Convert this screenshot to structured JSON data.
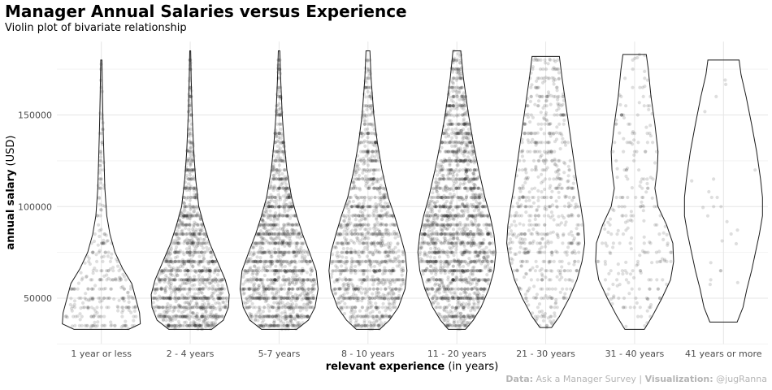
{
  "chart_data": {
    "type": "violin",
    "title": "Manager Annual Salaries versus Experience",
    "subtitle": "Violin plot of bivariate relationship",
    "xlabel_bold": "relevant experience",
    "xlabel_rest": " (in years)",
    "ylabel_bold": "annual salary",
    "ylabel_rest": " (USD)",
    "ylim": [
      25000,
      190000
    ],
    "yticks": [
      50000,
      100000,
      150000
    ],
    "ytick_labels": [
      "50000",
      "100000",
      "150000"
    ],
    "grid": true,
    "caption": {
      "data_label": "Data:",
      "data_value": " Ask a Manager Survey | ",
      "viz_label": "Visualization:",
      "viz_value": " @jugRanna"
    },
    "categories": [
      {
        "label": "1 year or less",
        "min": 33000,
        "max": 180000,
        "n": 300,
        "profile": [
          [
            33000,
            0.7
          ],
          [
            36000,
            1.0
          ],
          [
            42000,
            0.98
          ],
          [
            50000,
            0.88
          ],
          [
            58000,
            0.78
          ],
          [
            66000,
            0.55
          ],
          [
            75000,
            0.35
          ],
          [
            85000,
            0.22
          ],
          [
            95000,
            0.14
          ],
          [
            110000,
            0.09
          ],
          [
            125000,
            0.07
          ],
          [
            140000,
            0.05
          ],
          [
            160000,
            0.03
          ],
          [
            180000,
            0.015
          ]
        ]
      },
      {
        "label": "2 - 4 years",
        "min": 33000,
        "max": 185000,
        "n": 1300,
        "profile": [
          [
            33000,
            0.55
          ],
          [
            38000,
            0.85
          ],
          [
            45000,
            0.98
          ],
          [
            52000,
            1.0
          ],
          [
            60000,
            0.9
          ],
          [
            70000,
            0.7
          ],
          [
            80000,
            0.5
          ],
          [
            90000,
            0.35
          ],
          [
            100000,
            0.22
          ],
          [
            115000,
            0.14
          ],
          [
            130000,
            0.09
          ],
          [
            150000,
            0.05
          ],
          [
            170000,
            0.025
          ],
          [
            185000,
            0.012
          ]
        ]
      },
      {
        "label": "5-7 years",
        "min": 33000,
        "max": 185000,
        "n": 1500,
        "profile": [
          [
            33000,
            0.45
          ],
          [
            38000,
            0.75
          ],
          [
            45000,
            0.92
          ],
          [
            55000,
            1.0
          ],
          [
            65000,
            0.95
          ],
          [
            75000,
            0.78
          ],
          [
            85000,
            0.6
          ],
          [
            95000,
            0.45
          ],
          [
            105000,
            0.32
          ],
          [
            120000,
            0.2
          ],
          [
            135000,
            0.13
          ],
          [
            150000,
            0.08
          ],
          [
            170000,
            0.04
          ],
          [
            185000,
            0.02
          ]
        ]
      },
      {
        "label": "8 - 10 years",
        "min": 33000,
        "max": 185000,
        "n": 1300,
        "profile": [
          [
            33000,
            0.3
          ],
          [
            38000,
            0.55
          ],
          [
            45000,
            0.78
          ],
          [
            55000,
            0.95
          ],
          [
            65000,
            1.0
          ],
          [
            75000,
            0.95
          ],
          [
            85000,
            0.82
          ],
          [
            95000,
            0.68
          ],
          [
            105000,
            0.52
          ],
          [
            120000,
            0.36
          ],
          [
            135000,
            0.24
          ],
          [
            150000,
            0.15
          ],
          [
            170000,
            0.08
          ],
          [
            185000,
            0.05
          ]
        ]
      },
      {
        "label": "11 - 20 years",
        "min": 33000,
        "max": 185000,
        "n": 2000,
        "profile": [
          [
            33000,
            0.22
          ],
          [
            38000,
            0.42
          ],
          [
            45000,
            0.62
          ],
          [
            55000,
            0.82
          ],
          [
            65000,
            0.95
          ],
          [
            75000,
            1.0
          ],
          [
            85000,
            0.95
          ],
          [
            95000,
            0.85
          ],
          [
            105000,
            0.72
          ],
          [
            120000,
            0.56
          ],
          [
            135000,
            0.42
          ],
          [
            150000,
            0.3
          ],
          [
            170000,
            0.17
          ],
          [
            185000,
            0.1
          ]
        ]
      },
      {
        "label": "21 - 30 years",
        "min": 34000,
        "max": 182000,
        "n": 700,
        "profile": [
          [
            34000,
            0.15
          ],
          [
            40000,
            0.35
          ],
          [
            50000,
            0.6
          ],
          [
            60000,
            0.8
          ],
          [
            70000,
            0.93
          ],
          [
            80000,
            1.0
          ],
          [
            90000,
            0.97
          ],
          [
            100000,
            0.9
          ],
          [
            110000,
            0.82
          ],
          [
            125000,
            0.72
          ],
          [
            140000,
            0.62
          ],
          [
            155000,
            0.52
          ],
          [
            170000,
            0.42
          ],
          [
            182000,
            0.35
          ]
        ]
      },
      {
        "label": "31 - 40 years",
        "min": 33000,
        "max": 183000,
        "n": 250,
        "profile": [
          [
            33000,
            0.25
          ],
          [
            40000,
            0.45
          ],
          [
            50000,
            0.7
          ],
          [
            60000,
            0.92
          ],
          [
            70000,
            1.0
          ],
          [
            80000,
            0.98
          ],
          [
            90000,
            0.82
          ],
          [
            100000,
            0.6
          ],
          [
            110000,
            0.52
          ],
          [
            120000,
            0.58
          ],
          [
            130000,
            0.6
          ],
          [
            145000,
            0.52
          ],
          [
            160000,
            0.42
          ],
          [
            175000,
            0.35
          ],
          [
            183000,
            0.3
          ]
        ]
      },
      {
        "label": "41 years or more",
        "min": 37000,
        "max": 180000,
        "n": 25,
        "profile": [
          [
            37000,
            0.35
          ],
          [
            45000,
            0.5
          ],
          [
            55000,
            0.6
          ],
          [
            65000,
            0.72
          ],
          [
            75000,
            0.82
          ],
          [
            85000,
            0.92
          ],
          [
            95000,
            1.0
          ],
          [
            105000,
            1.0
          ],
          [
            115000,
            0.95
          ],
          [
            130000,
            0.85
          ],
          [
            145000,
            0.72
          ],
          [
            160000,
            0.58
          ],
          [
            172000,
            0.45
          ],
          [
            180000,
            0.4
          ]
        ]
      }
    ]
  }
}
